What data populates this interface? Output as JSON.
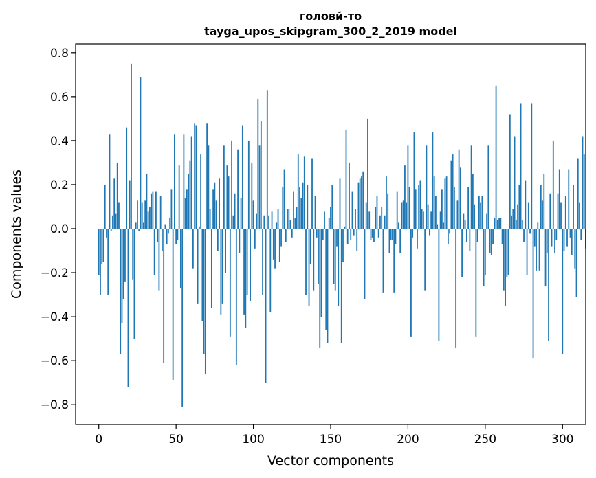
{
  "chart_data": {
    "type": "bar",
    "title": "головй-то",
    "subtitle": "tayga_upos_skipgram_300_2_2019 model",
    "xlabel": "Vector components",
    "ylabel": "Components values",
    "xlim": [
      -15,
      315
    ],
    "ylim": [
      -0.89,
      0.84
    ],
    "xticks": [
      0,
      50,
      100,
      150,
      200,
      250,
      300
    ],
    "xtick_labels": [
      "0",
      "50",
      "100",
      "150",
      "200",
      "250",
      "300"
    ],
    "yticks": [
      -0.8,
      -0.6,
      -0.4,
      -0.2,
      0.0,
      0.2,
      0.4,
      0.6,
      0.8
    ],
    "ytick_labels": [
      "−0.8",
      "−0.6",
      "−0.4",
      "−0.2",
      "0.0",
      "0.2",
      "0.4",
      "0.6",
      "0.8"
    ],
    "grid": false,
    "bar_color": "#1f77b4",
    "series": [
      {
        "values": [
          -0.21,
          -0.3,
          -0.16,
          -0.15,
          0.2,
          -0.04,
          -0.3,
          0.43,
          -0.01,
          0.06,
          0.23,
          0.07,
          0.3,
          0.12,
          -0.57,
          -0.43,
          -0.32,
          -0.24,
          0.46,
          -0.72,
          0.22,
          0.75,
          -0.23,
          -0.5,
          0.03,
          0.13,
          -0.01,
          0.69,
          0.12,
          0.03,
          0.13,
          0.25,
          0.08,
          0.1,
          0.16,
          0.17,
          -0.21,
          0.17,
          -0.06,
          -0.28,
          0.15,
          -0.1,
          -0.61,
          0.02,
          -0.07,
          -0.02,
          0.05,
          0.18,
          -0.69,
          0.43,
          -0.07,
          -0.05,
          0.29,
          -0.27,
          -0.81,
          0.43,
          0.14,
          0.18,
          0.25,
          0.31,
          0.42,
          -0.18,
          0.48,
          0.47,
          -0.34,
          0.01,
          0.34,
          -0.42,
          -0.57,
          -0.66,
          0.48,
          0.38,
          0.09,
          -0.36,
          0.18,
          0.21,
          0.13,
          -0.1,
          0.23,
          -0.39,
          -0.34,
          0.38,
          -0.2,
          0.29,
          0.24,
          -0.49,
          0.4,
          0.06,
          0.16,
          -0.62,
          0.36,
          -0.11,
          0.14,
          0.47,
          -0.39,
          -0.45,
          -0.3,
          0.4,
          -0.33,
          0.3,
          0.13,
          -0.09,
          0.07,
          0.59,
          0.38,
          0.49,
          -0.3,
          0.06,
          -0.7,
          0.63,
          0.06,
          -0.38,
          0.08,
          -0.14,
          -0.18,
          0.03,
          0.09,
          -0.15,
          -0.08,
          0.19,
          0.27,
          -0.06,
          0.09,
          0.09,
          0.04,
          -0.04,
          0.17,
          0.05,
          0.1,
          0.34,
          0.19,
          0.14,
          0.21,
          0.33,
          -0.3,
          0.2,
          -0.35,
          -0.16,
          0.32,
          -0.28,
          0.15,
          -0.04,
          -0.25,
          -0.54,
          -0.4,
          -0.05,
          0.08,
          -0.46,
          -0.52,
          0.05,
          0.1,
          0.2,
          -0.25,
          -0.28,
          -0.08,
          -0.35,
          0.23,
          -0.52,
          -0.15,
          0.01,
          0.45,
          -0.07,
          0.3,
          -0.05,
          0.17,
          -0.03,
          0.09,
          -0.1,
          0.21,
          0.23,
          0.24,
          0.26,
          -0.32,
          0.12,
          0.5,
          0.08,
          -0.05,
          -0.04,
          -0.06,
          0.1,
          0.15,
          -0.04,
          0.06,
          0.1,
          -0.29,
          0.06,
          0.24,
          0.16,
          -0.11,
          -0.05,
          -0.05,
          -0.29,
          -0.07,
          0.17,
          0.03,
          -0.11,
          0.12,
          0.13,
          0.29,
          0.12,
          0.38,
          0.19,
          -0.49,
          -0.04,
          0.44,
          0.18,
          -0.09,
          0.2,
          0.22,
          0.09,
          0.08,
          -0.28,
          0.38,
          0.11,
          -0.03,
          0.08,
          0.44,
          0.24,
          0.15,
          0.02,
          -0.51,
          0.08,
          0.18,
          0.03,
          0.23,
          0.24,
          -0.07,
          -0.02,
          0.31,
          0.34,
          0.19,
          -0.54,
          0.13,
          0.36,
          0.28,
          -0.22,
          0.07,
          0.04,
          -0.06,
          0.19,
          -0.1,
          0.38,
          0.25,
          0.11,
          -0.49,
          -0.06,
          0.15,
          0.12,
          0.15,
          -0.26,
          -0.21,
          0.07,
          0.38,
          -0.11,
          -0.12,
          -0.07,
          0.05,
          0.65,
          0.04,
          0.05,
          0.05,
          -0.07,
          -0.28,
          -0.35,
          -0.22,
          -0.21,
          0.52,
          0.06,
          0.09,
          0.42,
          0.04,
          0.11,
          0.2,
          0.57,
          0.04,
          -0.06,
          0.22,
          -0.21,
          0.12,
          -0.02,
          0.57,
          -0.59,
          -0.08,
          -0.19,
          0.03,
          -0.19,
          0.2,
          0.13,
          0.25,
          -0.26,
          -0.11,
          -0.51,
          0.16,
          -0.08,
          0.4,
          -0.11,
          -0.05,
          0.16,
          0.27,
          0.12,
          -0.57,
          -0.1,
          0.15,
          -0.08,
          0.27,
          -0.04,
          -0.12,
          0.2,
          -0.18,
          -0.31,
          0.32,
          0.12,
          -0.05,
          0.42,
          0.34,
          -0.09
        ]
      }
    ]
  }
}
